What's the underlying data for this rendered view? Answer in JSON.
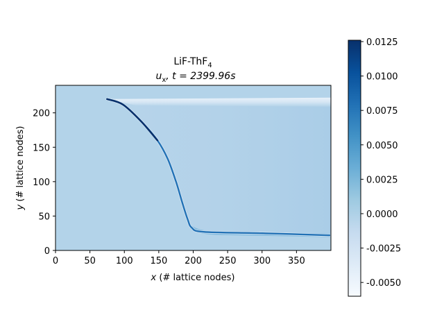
{
  "chart_data": {
    "type": "heatmap",
    "title_line1_main": "LiF-ThF",
    "title_line1_sub": "4",
    "title_line2_var": "u",
    "title_line2_var_sub": "x",
    "title_line2_rest": ", t = 2399.96s",
    "xlabel_var": "x",
    "xlabel_rest": " (# lattice nodes)",
    "ylabel_var": "y",
    "ylabel_rest": " (# lattice nodes)",
    "xlim": [
      0,
      400
    ],
    "ylim": [
      0,
      240
    ],
    "xticks": [
      0,
      50,
      100,
      150,
      200,
      250,
      300,
      350
    ],
    "yticks": [
      0,
      50,
      100,
      150,
      200
    ],
    "colormap": "Blues",
    "colorbar": {
      "vmin": -0.006,
      "vmax": 0.0126,
      "ticks": [
        "-0.0050",
        "-0.0025",
        "0.0000",
        "0.0025",
        "0.0050",
        "0.0075",
        "0.0100",
        "0.0125"
      ],
      "tick_values": [
        -0.005,
        -0.0025,
        0.0,
        0.0025,
        0.005,
        0.0075,
        0.01,
        0.0125
      ]
    },
    "field": {
      "background_value": 0.0026,
      "liquid_region_value": 0.0024,
      "front_curve": [
        [
          75,
          220
        ],
        [
          98,
          212
        ],
        [
          125,
          187
        ],
        [
          148,
          160
        ],
        [
          163,
          133
        ],
        [
          175,
          100
        ],
        [
          184,
          70
        ],
        [
          192,
          45
        ],
        [
          198,
          33
        ],
        [
          215,
          27
        ],
        [
          300,
          25
        ],
        [
          398,
          22
        ]
      ],
      "front_peak_value": 0.0125,
      "top_boundary_y": 220,
      "top_boundary_value": -0.004,
      "bottom_layer_y": 25,
      "bottom_layer_value": 0.0045
    }
  }
}
